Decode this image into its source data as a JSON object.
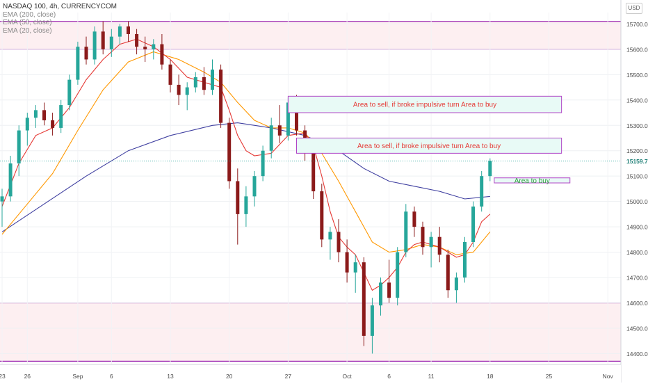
{
  "header": {
    "symbol_line": "NASDAQ 100, 4h, CURRENCYCOM",
    "indicators": [
      "EMA (200, close)",
      "EMA (50, close)",
      "EMA (20, close)"
    ],
    "currency_button": "USD"
  },
  "chart_data": {
    "type": "candlestick",
    "y_range": [
      14360,
      15745
    ],
    "y_ticks": [
      14400,
      14500,
      14600,
      14700,
      14800,
      14900,
      15000,
      15100,
      15200,
      15300,
      15400,
      15500,
      15600,
      15700
    ],
    "y_tick_labels": [
      "14400.0",
      "14500.0",
      "14600.0",
      "14700.0",
      "14800.0",
      "14900.0",
      "15000.0",
      "15100.0",
      "15200.0",
      "15300.0",
      "15400.0",
      "15500.0",
      "15600.0",
      "15700.0"
    ],
    "x_range": [
      0,
      72
    ],
    "x_ticks": [
      {
        "pos": 0,
        "label": "23"
      },
      {
        "pos": 3,
        "label": "26"
      },
      {
        "pos": 9,
        "label": "Sep"
      },
      {
        "pos": 13,
        "label": "6"
      },
      {
        "pos": 20,
        "label": "13"
      },
      {
        "pos": 27,
        "label": "20"
      },
      {
        "pos": 34,
        "label": "27"
      },
      {
        "pos": 41,
        "label": "Oct"
      },
      {
        "pos": 46,
        "label": "6"
      },
      {
        "pos": 51,
        "label": "11"
      },
      {
        "pos": 58,
        "label": "18"
      },
      {
        "pos": 65,
        "label": "25"
      },
      {
        "pos": 72,
        "label": "Nov"
      }
    ],
    "last_price": "15159.7",
    "last_price_value": 15159.7,
    "colors": {
      "up": "#26a69a",
      "down": "#8b1a1a",
      "ema20": "#e53935",
      "ema50": "#ff9800",
      "ema200": "#3f3fa0",
      "zone_line": "#9c27b0",
      "zone_fill": "#fdeff1",
      "box_border": "#b044c6",
      "box_fill": "#e8faf6"
    },
    "candles": [
      [
        15000,
        15050,
        14900,
        15020
      ],
      [
        15020,
        15180,
        15000,
        15150
      ],
      [
        15150,
        15300,
        15100,
        15280
      ],
      [
        15280,
        15350,
        15220,
        15330
      ],
      [
        15330,
        15380,
        15290,
        15360
      ],
      [
        15360,
        15390,
        15300,
        15320
      ],
      [
        15320,
        15350,
        15260,
        15290
      ],
      [
        15290,
        15400,
        15270,
        15380
      ],
      [
        15380,
        15500,
        15360,
        15480
      ],
      [
        15480,
        15630,
        15460,
        15610
      ],
      [
        15610,
        15650,
        15540,
        15560
      ],
      [
        15560,
        15690,
        15540,
        15670
      ],
      [
        15670,
        15710,
        15580,
        15600
      ],
      [
        15600,
        15680,
        15570,
        15650
      ],
      [
        15650,
        15700,
        15620,
        15690
      ],
      [
        15690,
        15710,
        15630,
        15660
      ],
      [
        15660,
        15680,
        15580,
        15610
      ],
      [
        15610,
        15650,
        15550,
        15600
      ],
      [
        15600,
        15640,
        15560,
        15620
      ],
      [
        15620,
        15660,
        15520,
        15540
      ],
      [
        15540,
        15560,
        15430,
        15460
      ],
      [
        15460,
        15500,
        15380,
        15420
      ],
      [
        15420,
        15470,
        15360,
        15450
      ],
      [
        15450,
        15510,
        15430,
        15490
      ],
      [
        15490,
        15530,
        15420,
        15440
      ],
      [
        15440,
        15560,
        15420,
        15520
      ],
      [
        15520,
        15540,
        15290,
        15310
      ],
      [
        15310,
        15330,
        15050,
        15080
      ],
      [
        15080,
        15130,
        14830,
        14950
      ],
      [
        14950,
        15060,
        14900,
        15020
      ],
      [
        15020,
        15120,
        14980,
        15100
      ],
      [
        15100,
        15220,
        15080,
        15200
      ],
      [
        15200,
        15330,
        15170,
        15300
      ],
      [
        15300,
        15380,
        15230,
        15260
      ],
      [
        15260,
        15410,
        15240,
        15390
      ],
      [
        15390,
        15420,
        15260,
        15280
      ],
      [
        15280,
        15300,
        15160,
        15190
      ],
      [
        15190,
        15220,
        15010,
        15040
      ],
      [
        15040,
        15070,
        14820,
        14850
      ],
      [
        14850,
        14900,
        14770,
        14880
      ],
      [
        14880,
        14930,
        14760,
        14800
      ],
      [
        14800,
        14850,
        14680,
        14720
      ],
      [
        14720,
        14790,
        14640,
        14760
      ],
      [
        14760,
        14780,
        14430,
        14470
      ],
      [
        14470,
        14620,
        14400,
        14590
      ],
      [
        14590,
        14700,
        14550,
        14680
      ],
      [
        14680,
        14770,
        14600,
        14620
      ],
      [
        14620,
        14820,
        14590,
        14800
      ],
      [
        14800,
        14990,
        14780,
        14960
      ],
      [
        14960,
        14980,
        14860,
        14900
      ],
      [
        14900,
        14920,
        14790,
        14820
      ],
      [
        14820,
        14880,
        14740,
        14860
      ],
      [
        14860,
        14900,
        14760,
        14790
      ],
      [
        14790,
        14810,
        14620,
        14650
      ],
      [
        14650,
        14720,
        14600,
        14700
      ],
      [
        14700,
        14860,
        14680,
        14840
      ],
      [
        14840,
        15000,
        14820,
        14980
      ],
      [
        14980,
        15120,
        14960,
        15100
      ],
      [
        15100,
        15170,
        15080,
        15160
      ]
    ],
    "ema20": [
      [
        0,
        14980
      ],
      [
        2,
        15150
      ],
      [
        4,
        15260
      ],
      [
        6,
        15290
      ],
      [
        8,
        15370
      ],
      [
        10,
        15480
      ],
      [
        12,
        15560
      ],
      [
        14,
        15620
      ],
      [
        16,
        15640
      ],
      [
        18,
        15610
      ],
      [
        20,
        15560
      ],
      [
        22,
        15490
      ],
      [
        24,
        15470
      ],
      [
        26,
        15450
      ],
      [
        27,
        15360
      ],
      [
        28,
        15260
      ],
      [
        29,
        15200
      ],
      [
        30,
        15180
      ],
      [
        32,
        15190
      ],
      [
        34,
        15260
      ],
      [
        36,
        15270
      ],
      [
        37,
        15220
      ],
      [
        38,
        15100
      ],
      [
        39,
        14960
      ],
      [
        40,
        14860
      ],
      [
        41,
        14820
      ],
      [
        42,
        14790
      ],
      [
        43,
        14720
      ],
      [
        44,
        14650
      ],
      [
        45,
        14670
      ],
      [
        46,
        14700
      ],
      [
        47,
        14740
      ],
      [
        48,
        14800
      ],
      [
        49,
        14830
      ],
      [
        50,
        14840
      ],
      [
        52,
        14820
      ],
      [
        54,
        14780
      ],
      [
        55,
        14790
      ],
      [
        56,
        14840
      ],
      [
        57,
        14920
      ],
      [
        58,
        14950
      ]
    ],
    "ema50": [
      [
        0,
        14870
      ],
      [
        3,
        14990
      ],
      [
        6,
        15110
      ],
      [
        9,
        15280
      ],
      [
        12,
        15440
      ],
      [
        15,
        15550
      ],
      [
        18,
        15590
      ],
      [
        21,
        15560
      ],
      [
        24,
        15510
      ],
      [
        26,
        15470
      ],
      [
        28,
        15390
      ],
      [
        30,
        15320
      ],
      [
        32,
        15290
      ],
      [
        34,
        15290
      ],
      [
        36,
        15270
      ],
      [
        38,
        15190
      ],
      [
        40,
        15080
      ],
      [
        42,
        14960
      ],
      [
        44,
        14840
      ],
      [
        46,
        14800
      ],
      [
        48,
        14810
      ],
      [
        50,
        14830
      ],
      [
        52,
        14820
      ],
      [
        54,
        14790
      ],
      [
        56,
        14800
      ],
      [
        58,
        14880
      ]
    ],
    "ema200": [
      [
        0,
        14880
      ],
      [
        5,
        14990
      ],
      [
        10,
        15100
      ],
      [
        15,
        15200
      ],
      [
        20,
        15260
      ],
      [
        25,
        15300
      ],
      [
        28,
        15310
      ],
      [
        32,
        15290
      ],
      [
        36,
        15260
      ],
      [
        40,
        15200
      ],
      [
        43,
        15130
      ],
      [
        46,
        15080
      ],
      [
        49,
        15060
      ],
      [
        52,
        15040
      ],
      [
        55,
        15010
      ],
      [
        58,
        15020
      ]
    ],
    "zones": [
      {
        "from": 15600,
        "to": 15710
      },
      {
        "from": 14370,
        "to": 14600
      }
    ],
    "boxes": [
      {
        "label": "Area to sell, if broke impulsive turn Area to buy",
        "x1": 34,
        "x2": 66.5,
        "y_high": 15415,
        "y_low": 15350,
        "text_color": "#e53935"
      },
      {
        "label": "Area to sell, if broke impulsive turn Area to buy",
        "x1": 35,
        "x2": 66.5,
        "y_high": 15250,
        "y_low": 15190,
        "text_color": "#e53935"
      },
      {
        "label": "Area to buy",
        "x1": 58.5,
        "x2": 67.5,
        "y_high": 15093,
        "y_low": 15073,
        "text_color": "#2e9e3f"
      }
    ]
  }
}
